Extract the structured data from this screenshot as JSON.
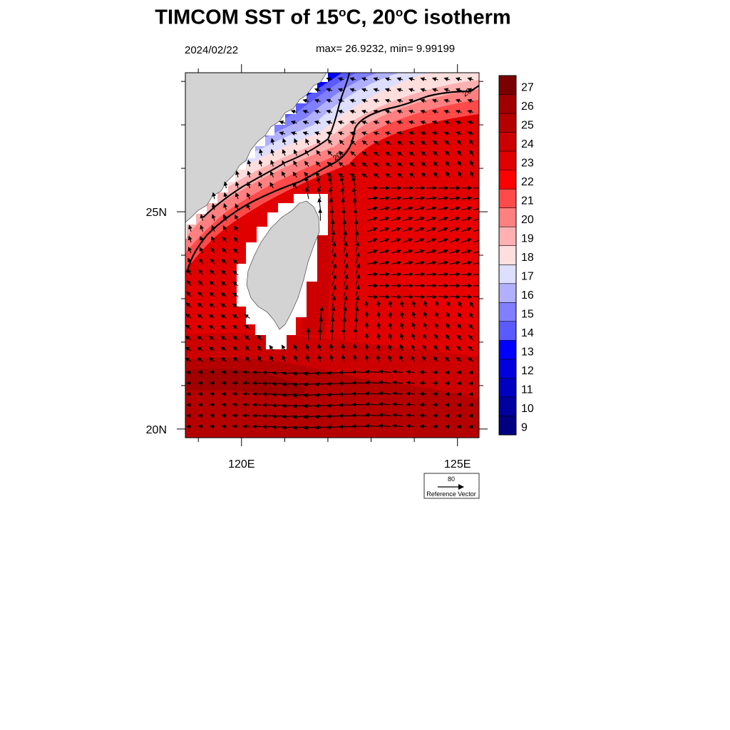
{
  "title": {
    "prefix": "TIMCOM SST of 15",
    "deg1": "o",
    "middle": "C, 20",
    "deg2": "o",
    "suffix": "C isotherm"
  },
  "date": "2024/02/22",
  "stats": "max= 26.9232, min= 9.99199",
  "map": {
    "lon_range": [
      118.7,
      125.5
    ],
    "lat_range": [
      19.8,
      28.2
    ],
    "x_ticks": [
      {
        "value": 120,
        "label": "120E"
      },
      {
        "value": 125,
        "label": "125E"
      }
    ],
    "y_ticks": [
      {
        "value": 25,
        "label": "25N"
      },
      {
        "value": 20,
        "label": "20N"
      }
    ],
    "isotherm_label": "20",
    "land_color": "#d3d3d3"
  },
  "colorbar": {
    "levels": [
      "27",
      "26",
      "25",
      "24",
      "23",
      "22",
      "21",
      "20",
      "19",
      "18",
      "17",
      "16",
      "15",
      "14",
      "13",
      "12",
      "11",
      "10",
      "9"
    ],
    "colors": [
      "#7a0000",
      "#a00000",
      "#b50000",
      "#cc0000",
      "#e00000",
      "#ff0000",
      "#ff4a4a",
      "#ff8080",
      "#ffb0b0",
      "#ffdede",
      "#dedeff",
      "#b0b0ff",
      "#8080ff",
      "#5a5aff",
      "#0000ff",
      "#0000de",
      "#0000c0",
      "#00009e",
      "#000080"
    ]
  },
  "reference_vector": {
    "value": "80",
    "label": "Reference Vector"
  }
}
